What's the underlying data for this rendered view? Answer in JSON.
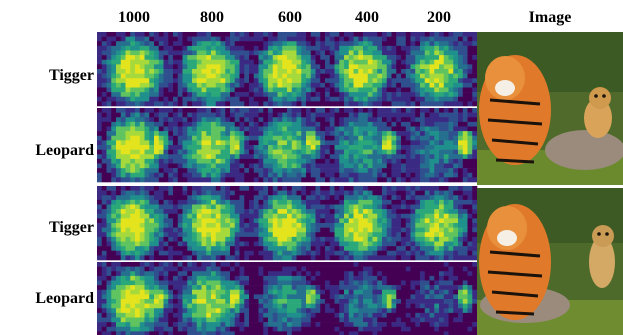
{
  "columns": [
    "1000",
    "800",
    "600",
    "400",
    "200",
    "Image"
  ],
  "rows": [
    "Tigger",
    "Leopard",
    "Tigger",
    "Leopard"
  ],
  "colors": {
    "attention_low": "#3b1a6b",
    "attention_mid": "#21918c",
    "attention_high": "#e5e51e",
    "tiger_orange": "#e07a2a",
    "grass": "#6b8a2e",
    "rock": "#9a8b7c"
  }
}
